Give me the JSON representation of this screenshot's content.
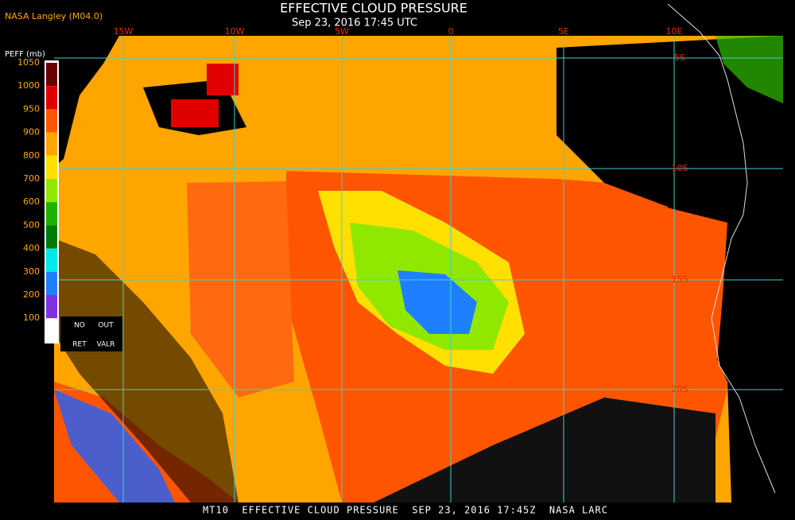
{
  "header": {
    "source": "NASA Langley (M04.0)",
    "title": "EFFECTIVE CLOUD PRESSURE",
    "subtitle": "Sep 23, 2016 17:45 UTC"
  },
  "map": {
    "longitude_labels": [
      "15W",
      "10W",
      "5W",
      "0",
      "5E",
      "10E"
    ],
    "latitude_labels": [
      "5S",
      "10S",
      "15S",
      "20S"
    ],
    "grid_color": "#40d0d0"
  },
  "colorbar": {
    "title": "PEFF (mb)",
    "labels": [
      1050,
      1000,
      950,
      900,
      800,
      700,
      600,
      500,
      400,
      300,
      200,
      100
    ],
    "colors": [
      "#6b0000",
      "#e00000",
      "#ff5500",
      "#ffa500",
      "#ffe000",
      "#90e800",
      "#20b000",
      "#007a00",
      "#00e8e8",
      "#1e80ff",
      "#8030e0"
    ],
    "flags": [
      "NO",
      "OUT",
      "RET",
      "VALR"
    ]
  },
  "footer": "MT10  EFFECTIVE CLOUD PRESSURE  SEP 23, 2016 17:45Z  NASA LARC"
}
